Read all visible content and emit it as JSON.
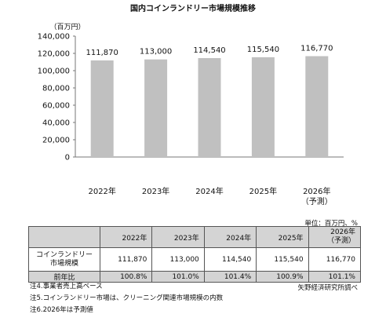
{
  "chart_data": {
    "type": "bar",
    "title": "国内コインランドリー市場規模推移",
    "unit_label": "（百万円）",
    "categories": [
      {
        "year": "2022年",
        "sub": ""
      },
      {
        "year": "2023年",
        "sub": ""
      },
      {
        "year": "2024年",
        "sub": ""
      },
      {
        "year": "2025年",
        "sub": ""
      },
      {
        "year": "2026年",
        "sub": "（予測）"
      }
    ],
    "values": [
      111870,
      113000,
      114540,
      115540,
      116770
    ],
    "value_labels": [
      "111,870",
      "113,000",
      "114,540",
      "115,540",
      "116,770"
    ],
    "ylim": [
      0,
      140000
    ],
    "yticks": [
      0,
      20000,
      40000,
      60000,
      80000,
      100000,
      120000,
      140000
    ],
    "ytick_labels": [
      "0",
      "20,000",
      "40,000",
      "60,000",
      "80,000",
      "100,000",
      "120,000",
      "140,000"
    ],
    "bar_color": "#c0c0c0",
    "grid": false
  },
  "table": {
    "unit": "単位：百万円、%",
    "headers": [
      "",
      "2022年",
      "2023年",
      "2024年",
      "2025年",
      "2026年"
    ],
    "header_2026_sub": "（予測）",
    "rows": [
      {
        "label": "コインランドリー",
        "label2": "市場規模",
        "cells": [
          "111,870",
          "113,000",
          "114,540",
          "115,540",
          "116,770"
        ]
      },
      {
        "label": "前年比",
        "label2": "",
        "cells": [
          "100.8%",
          "101.0%",
          "101.4%",
          "100.9%",
          "101.1%"
        ]
      }
    ],
    "header_bg": "#d4d4d4"
  },
  "notes": [
    "注4.事業者売上高ベース",
    "注5.コインランドリー市場は、クリーニング関連市場規模の内数",
    "注6.2026年は予測値"
  ],
  "source": "矢野経済研究所調べ"
}
